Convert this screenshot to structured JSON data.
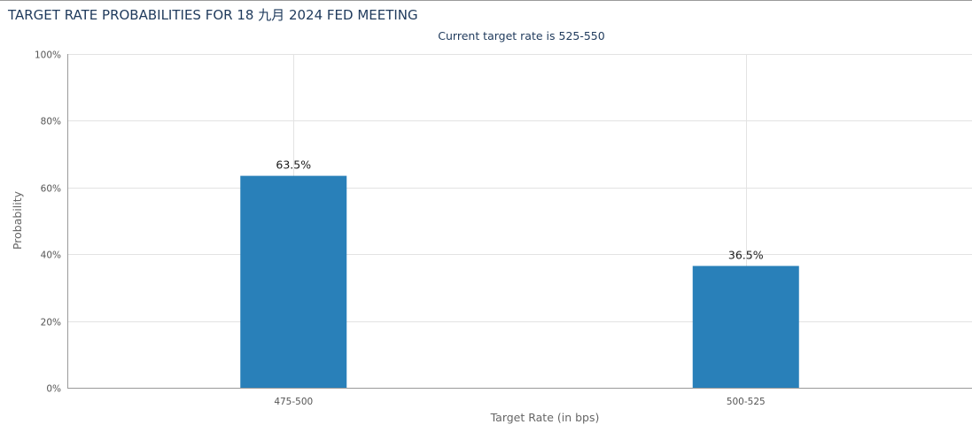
{
  "chart_data": {
    "type": "bar",
    "title": "TARGET RATE PROBABILITIES FOR 18 九月 2024 FED MEETING",
    "subtitle": "Current target rate is 525-550",
    "categories": [
      "475-500",
      "500-525"
    ],
    "series": [
      {
        "values": [
          63.5,
          36.5
        ],
        "labels": [
          "63.5%",
          "36.5%"
        ]
      }
    ],
    "xlabel": "Target Rate (in bps)",
    "ylabel": "Probability",
    "ylim": [
      0,
      100
    ],
    "yticks": [
      "0%",
      "20%",
      "40%",
      "60%",
      "80%",
      "100%"
    ],
    "ytick_values": [
      0,
      20,
      40,
      60,
      80,
      100
    ],
    "grid": true,
    "legend": "none",
    "bar_color": "#2980b9",
    "grid_color": "#e3e3e3",
    "axis_color": "#9a9a9a"
  }
}
